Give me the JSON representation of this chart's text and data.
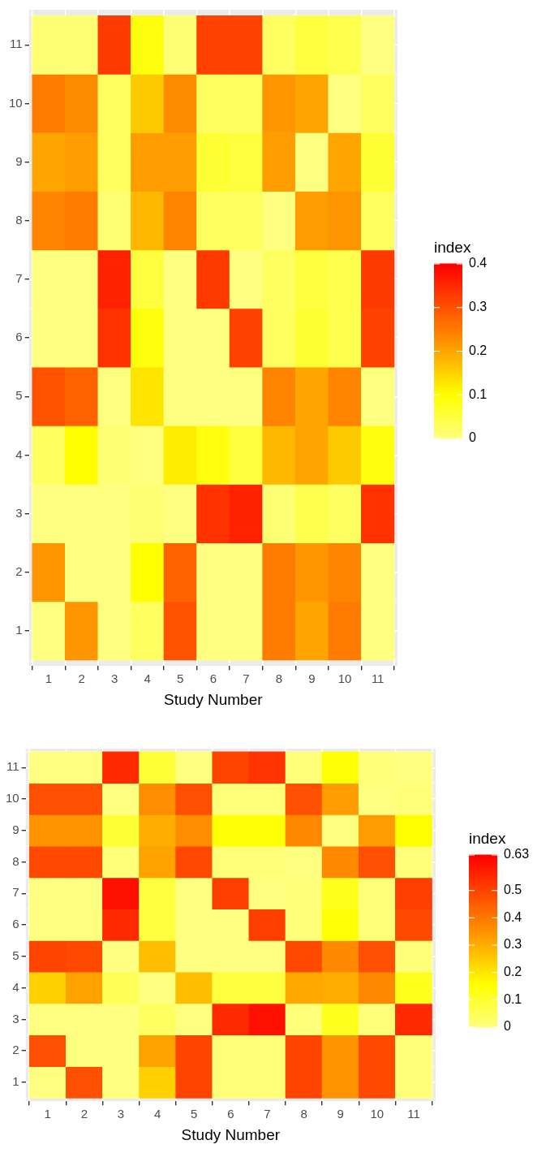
{
  "chart_data": [
    {
      "type": "heatmap",
      "xlabel": "Study Number",
      "clabel": "index",
      "grid": true,
      "categories": [
        "1",
        "2",
        "3",
        "4",
        "5",
        "6",
        "7",
        "8",
        "9",
        "10",
        "11"
      ],
      "y_categories": [
        "11",
        "10",
        "9",
        "8",
        "7",
        "6",
        "5",
        "4",
        "3",
        "2",
        "1"
      ],
      "cells": [
        [
          0.01,
          0.01,
          0.33,
          0.09,
          0.01,
          0.32,
          0.32,
          0.025,
          0.05,
          0.04,
          0
        ],
        [
          0.25,
          0.23,
          0.025,
          0.16,
          0.23,
          0.025,
          0.025,
          0.22,
          0.2,
          0,
          0.025
        ],
        [
          0.2,
          0.21,
          0.025,
          0.21,
          0.21,
          0.06,
          0.05,
          0.21,
          0,
          0.2,
          0.06
        ],
        [
          0.24,
          0.25,
          0.01,
          0.18,
          0.24,
          0.025,
          0.025,
          0,
          0.21,
          0.22,
          0.025
        ],
        [
          0,
          0,
          0.36,
          0.05,
          0,
          0.33,
          0,
          0.025,
          0.05,
          0.04,
          0.33
        ],
        [
          0,
          0,
          0.34,
          0.09,
          0,
          0,
          0.32,
          0.025,
          0.06,
          0.04,
          0.32
        ],
        [
          0.3,
          0.28,
          0,
          0.13,
          0,
          0,
          0,
          0.24,
          0.2,
          0.24,
          0
        ],
        [
          0.025,
          0.1,
          0.01,
          0,
          0.12,
          0.09,
          0.05,
          0.18,
          0.2,
          0.16,
          0.09
        ],
        [
          0,
          0,
          0,
          0.01,
          0,
          0.34,
          0.36,
          0.01,
          0.04,
          0.025,
          0.34
        ],
        [
          0.22,
          0,
          0,
          0.1,
          0.28,
          0,
          0,
          0.25,
          0.22,
          0.24,
          0
        ],
        [
          0,
          0.22,
          0,
          0.025,
          0.3,
          0,
          0,
          0.25,
          0.2,
          0.25,
          0
        ]
      ],
      "clim": [
        0,
        0.4
      ],
      "cticks": [
        0,
        0.1,
        0.2,
        0.3,
        0.4
      ]
    },
    {
      "type": "heatmap",
      "xlabel": "Study Number",
      "clabel": "index",
      "grid": true,
      "categories": [
        "1",
        "2",
        "3",
        "4",
        "5",
        "6",
        "7",
        "8",
        "9",
        "10",
        "11"
      ],
      "y_categories": [
        "11",
        "10",
        "9",
        "8",
        "7",
        "6",
        "5",
        "4",
        "3",
        "2",
        "1"
      ],
      "cells": [
        [
          0,
          0,
          0.55,
          0.09,
          0,
          0.5,
          0.53,
          0.01,
          0.15,
          0.01,
          0
        ],
        [
          0.48,
          0.48,
          0,
          0.36,
          0.48,
          0.01,
          0.01,
          0.48,
          0.33,
          0,
          0.01
        ],
        [
          0.35,
          0.35,
          0.09,
          0.3,
          0.36,
          0.15,
          0.15,
          0.37,
          0,
          0.33,
          0.16
        ],
        [
          0.49,
          0.49,
          0.01,
          0.32,
          0.49,
          0.01,
          0.01,
          0,
          0.37,
          0.48,
          0.01
        ],
        [
          0,
          0,
          0.6,
          0.08,
          0,
          0.51,
          0,
          0.01,
          0.12,
          0.01,
          0.51
        ],
        [
          0,
          0,
          0.55,
          0.08,
          0,
          0,
          0.51,
          0.01,
          0.15,
          0.01,
          0.49
        ],
        [
          0.5,
          0.49,
          0,
          0.27,
          0,
          0,
          0,
          0.49,
          0.37,
          0.48,
          0.01
        ],
        [
          0.24,
          0.32,
          0.05,
          0,
          0.27,
          0.08,
          0.08,
          0.31,
          0.3,
          0.37,
          0.12
        ],
        [
          0,
          0,
          0,
          0.04,
          0,
          0.55,
          0.6,
          0.01,
          0.12,
          0.01,
          0.55
        ],
        [
          0.48,
          0,
          0,
          0.32,
          0.5,
          0.01,
          0.01,
          0.5,
          0.35,
          0.49,
          0.01
        ],
        [
          0,
          0.48,
          0,
          0.24,
          0.5,
          0.01,
          0.01,
          0.5,
          0.35,
          0.49,
          0.01
        ]
      ],
      "clim": [
        0,
        0.63
      ],
      "cticks": [
        0,
        0.1,
        0.2,
        0.3,
        0.4,
        0.5,
        0.63
      ]
    }
  ]
}
